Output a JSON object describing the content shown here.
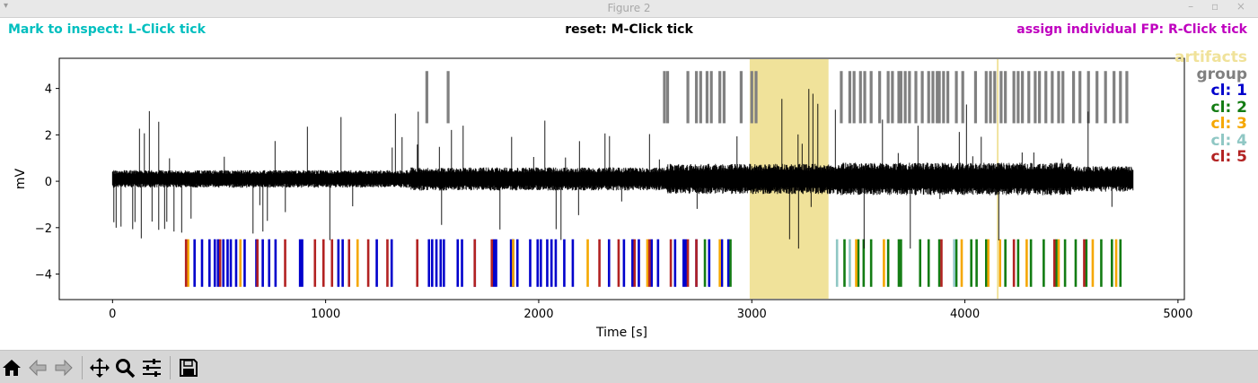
{
  "window": {
    "title": "Figure 2",
    "menu_glyph": "▾",
    "controls": "– ▫ ×"
  },
  "header": {
    "left": {
      "text": "Mark to inspect: L-Click tick",
      "color": "#00bfbf"
    },
    "center": {
      "text": "reset: M-Click tick",
      "color": "#000000"
    },
    "right": {
      "text": "assign individual FP: R-Click tick",
      "color": "#bf00bf"
    }
  },
  "legend": [
    {
      "label": "artifacts",
      "color": "#f0e29a"
    },
    {
      "label": "group",
      "color": "#808080"
    },
    {
      "label": "cl: 1",
      "color": "#0000cc"
    },
    {
      "label": "cl: 2",
      "color": "#137c13"
    },
    {
      "label": "cl: 3",
      "color": "#f5a700"
    },
    {
      "label": "cl: 4",
      "color": "#8fc7c4"
    },
    {
      "label": "cl: 5",
      "color": "#b22222"
    }
  ],
  "chart_data": {
    "type": "line",
    "xlabel": "Time [s]",
    "ylabel": "mV",
    "xlim": [
      -250,
      5030
    ],
    "ylim": [
      -5.1,
      5.3
    ],
    "xticks": [
      0,
      1000,
      2000,
      3000,
      4000,
      5000
    ],
    "yticks": [
      -4,
      -2,
      0,
      2,
      4
    ],
    "grid": false,
    "signal": {
      "color": "#000000",
      "x_range": [
        0,
        4790
      ],
      "baseline_mv": 0.1,
      "spike_range_mv": [
        -2.9,
        4.6
      ]
    },
    "artifact_spans": [
      [
        2990,
        3360
      ],
      [
        4150,
        4158
      ]
    ],
    "tick_marks": {
      "clusters_y_range": [
        -4.55,
        -2.5
      ],
      "group_y_range": [
        2.5,
        4.75
      ],
      "clusters": [
        {
          "name": "cl: 1",
          "times": [
            385,
            420,
            455,
            480,
            495,
            520,
            540,
            555,
            580,
            620,
            675,
            705,
            735,
            765,
            880,
            890,
            1060,
            1080,
            1240,
            1310,
            1485,
            1500,
            1520,
            1540,
            1555,
            1620,
            1640,
            1700,
            1790,
            1800,
            1870,
            1880,
            1900,
            1960,
            1995,
            2010,
            2040,
            2060,
            2080,
            2120,
            2160,
            2330,
            2400,
            2440,
            2470,
            2530,
            2560,
            2640,
            2680,
            2690,
            2740,
            2800,
            2860,
            2890
          ]
        },
        {
          "name": "cl: 2",
          "times": [
            2780,
            2900,
            3435,
            3500,
            3525,
            3560,
            3640,
            3690,
            3700,
            3790,
            3830,
            3880,
            3960,
            4030,
            4055,
            4100,
            4190,
            4250,
            4310,
            4370,
            4430,
            4470,
            4520,
            4570,
            4640,
            4690,
            4730
          ]
        },
        {
          "name": "cl: 3",
          "times": [
            355,
            600,
            1150,
            1880,
            2230,
            2510,
            2850,
            3490,
            3620,
            3985,
            4110,
            4165,
            4290,
            4440,
            4600,
            4710
          ]
        },
        {
          "name": "cl: 4",
          "times": [
            3400,
            3460,
            3950
          ]
        },
        {
          "name": "cl: 5",
          "times": [
            345,
            505,
            680,
            810,
            950,
            990,
            1030,
            1110,
            1200,
            1290,
            1430,
            1700,
            1780,
            2285,
            2375,
            2450,
            2520,
            2620,
            2700,
            2740,
            3890,
            4230,
            4420,
            4560
          ]
        }
      ],
      "group": [
        1475,
        1575,
        2590,
        2605,
        2700,
        2740,
        2760,
        2790,
        2810,
        2850,
        2870,
        2950,
        3000,
        3020,
        3420,
        3460,
        3480,
        3510,
        3530,
        3560,
        3600,
        3640,
        3660,
        3690,
        3700,
        3720,
        3740,
        3770,
        3800,
        3830,
        3850,
        3870,
        3880,
        3900,
        3920,
        3960,
        3990,
        4050,
        4100,
        4120,
        4140,
        4170,
        4190,
        4230,
        4250,
        4270,
        4300,
        4330,
        4350,
        4380,
        4410,
        4440,
        4460,
        4510,
        4540,
        4580,
        4620,
        4660,
        4700,
        4730,
        4760
      ]
    }
  },
  "toolbar": [
    {
      "id": "home",
      "icon": "home-icon"
    },
    {
      "id": "back",
      "icon": "back-arrow-icon"
    },
    {
      "id": "forward",
      "icon": "forward-arrow-icon"
    },
    {
      "id": "pan",
      "icon": "move-icon"
    },
    {
      "id": "zoom",
      "icon": "zoom-icon"
    },
    {
      "id": "configure",
      "icon": "sliders-icon"
    },
    {
      "id": "save",
      "icon": "save-icon"
    }
  ]
}
